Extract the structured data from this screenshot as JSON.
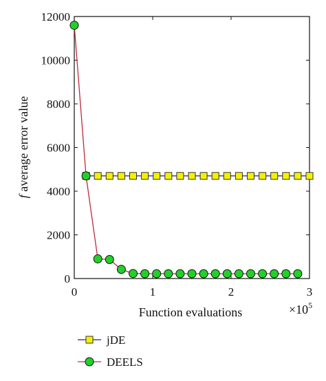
{
  "chart_data": {
    "type": "line",
    "xlabel": "Function evaluations",
    "ylabel_prefix": "f",
    "ylabel_rest": " average error value",
    "x_multiplier": "×10",
    "x_exponent": "5",
    "xlim": [
      0,
      3
    ],
    "ylim": [
      0,
      12000
    ],
    "xticks": [
      "0",
      "1",
      "2",
      "3"
    ],
    "yticks": [
      "0",
      "2000",
      "4000",
      "6000",
      "8000",
      "10000",
      "12000"
    ],
    "grid": false,
    "legend_position": "bottom-left, below plot",
    "series": [
      {
        "name": "jDE",
        "marker": "square",
        "line_color": "#1f1f8f",
        "marker_fill": "#f5f000",
        "x": [
          0.15,
          0.3,
          0.45,
          0.6,
          0.75,
          0.9,
          1.05,
          1.2,
          1.35,
          1.5,
          1.65,
          1.8,
          1.95,
          2.1,
          2.25,
          2.4,
          2.55,
          2.7,
          2.85,
          3.0
        ],
        "y": [
          4700,
          4700,
          4700,
          4700,
          4700,
          4700,
          4700,
          4700,
          4700,
          4700,
          4700,
          4700,
          4700,
          4700,
          4700,
          4700,
          4700,
          4700,
          4700,
          4700
        ]
      },
      {
        "name": "DEELS",
        "marker": "circle",
        "line_color": "#c0283a",
        "marker_fill": "#22d02a",
        "x": [
          0,
          0.15,
          0.3,
          0.45,
          0.6,
          0.75,
          0.9,
          1.05,
          1.2,
          1.35,
          1.5,
          1.65,
          1.8,
          1.95,
          2.1,
          2.25,
          2.4,
          2.55,
          2.7,
          2.85
        ],
        "y": [
          11600,
          4700,
          900,
          870,
          420,
          230,
          220,
          220,
          220,
          220,
          220,
          220,
          220,
          220,
          220,
          220,
          220,
          220,
          220,
          220
        ]
      }
    ]
  }
}
